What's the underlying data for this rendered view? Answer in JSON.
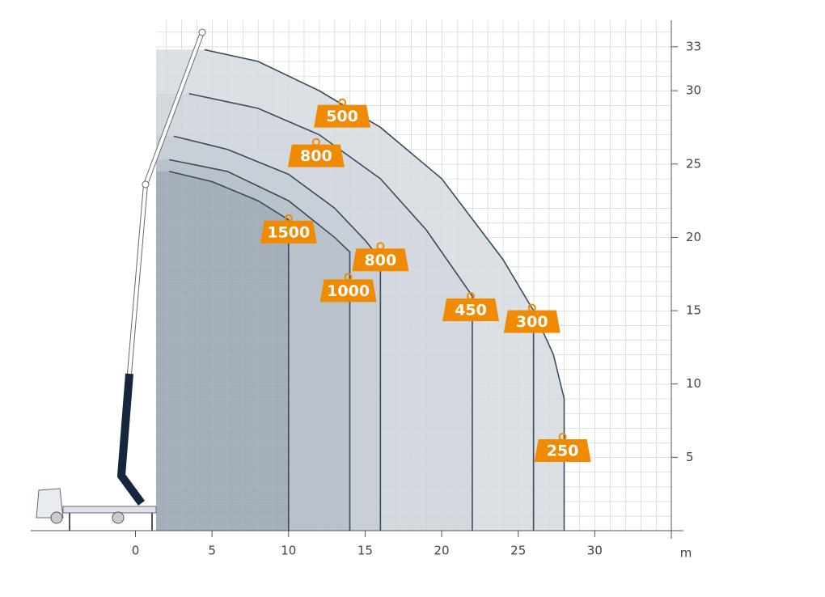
{
  "chart_data": {
    "type": "load_chart",
    "x_label": "m",
    "xlim": [
      -7,
      35
    ],
    "ylim": [
      0,
      35
    ],
    "xticks": [
      0,
      5,
      10,
      15,
      20,
      25,
      30
    ],
    "yticks": [
      5,
      10,
      15,
      20,
      25,
      30,
      33
    ],
    "curves": [
      {
        "fill": "#dbe0e5",
        "x": [
          4.5,
          8,
          12,
          16,
          20,
          24,
          26,
          27.3,
          28,
          28
        ],
        "y": [
          32.8,
          32,
          30,
          27.5,
          24,
          18.5,
          15,
          12,
          9,
          0
        ]
      },
      {
        "fill": "#d3d9df",
        "x": [
          3.5,
          8,
          12,
          16,
          19,
          21,
          22,
          22
        ],
        "y": [
          29.8,
          28.8,
          27,
          24,
          20.5,
          17.5,
          16,
          0
        ]
      },
      {
        "fill": "#c8cfd6",
        "x": [
          2.5,
          6,
          10,
          13,
          15,
          16,
          16
        ],
        "y": [
          26.9,
          26,
          24.3,
          22,
          19.8,
          18.5,
          0
        ]
      },
      {
        "fill": "#b9c2cb",
        "x": [
          2.2,
          6,
          10,
          13,
          14,
          14
        ],
        "y": [
          25.3,
          24.5,
          22.5,
          20,
          19,
          0
        ]
      },
      {
        "fill": "#a5afba",
        "x": [
          2.2,
          5,
          8,
          10,
          10
        ],
        "y": [
          24.5,
          23.8,
          22.5,
          21.2,
          0
        ]
      },
      {
        "x": [
          26,
          26
        ],
        "y": [
          15,
          0
        ]
      }
    ],
    "loads": [
      {
        "load": 500,
        "x": 13.5,
        "y": 29.2
      },
      {
        "load": 800,
        "x": 11.8,
        "y": 26.5
      },
      {
        "load": 1500,
        "x": 10,
        "y": 21.3
      },
      {
        "load": 800,
        "x": 16,
        "y": 19.4
      },
      {
        "load": 1000,
        "x": 13.9,
        "y": 17.3
      },
      {
        "load": 450,
        "x": 21.9,
        "y": 16
      },
      {
        "load": 300,
        "x": 25.9,
        "y": 15.2
      },
      {
        "load": 250,
        "x": 27.9,
        "y": 6.4
      }
    ],
    "load_color": "#f08a00"
  }
}
